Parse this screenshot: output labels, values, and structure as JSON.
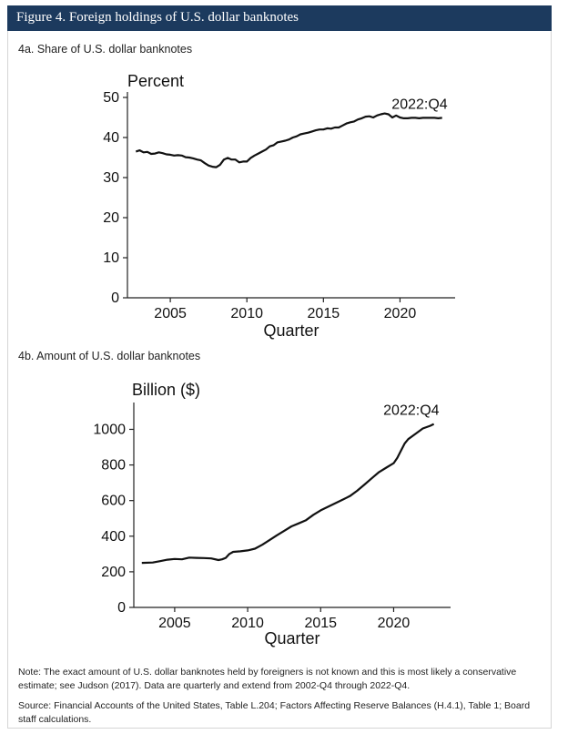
{
  "figure_title": "Figure 4. Foreign holdings of U.S. dollar banknotes",
  "panel_a_title": "4a. Share of U.S. dollar banknotes",
  "panel_b_title": "4b. Amount of U.S. dollar banknotes",
  "note": "Note: The exact amount of U.S. dollar banknotes held by foreigners is not known and this is most likely a conservative estimate; see Judson (2017). Data are quarterly and extend from 2002-Q4 through 2022-Q4.",
  "source": "Source: Financial Accounts of the United States, Table L.204; Factors Affecting Reserve Balances (H.4.1), Table 1; Board staff calculations.",
  "colors": {
    "header_bg": "#1c3a5e",
    "line": "#111111"
  },
  "chart_data": [
    {
      "type": "line",
      "title": "",
      "ylabel": "Percent",
      "xlabel": "Quarter",
      "xlim": [
        2002.2,
        2023.6
      ],
      "ylim": [
        0,
        50
      ],
      "xticks": [
        2005,
        2010,
        2015,
        2020
      ],
      "yticks": [
        0,
        10,
        20,
        30,
        40,
        50
      ],
      "annotation": {
        "text": "2022:Q4",
        "x": 2022.75,
        "y": 44.9
      },
      "grid": false,
      "series": [
        {
          "name": "",
          "x": [
            2002.75,
            2003.0,
            2003.25,
            2003.5,
            2003.75,
            2004.0,
            2004.25,
            2004.5,
            2004.75,
            2005.0,
            2005.25,
            2005.5,
            2005.75,
            2006.0,
            2006.25,
            2006.5,
            2006.75,
            2007.0,
            2007.25,
            2007.5,
            2007.75,
            2008.0,
            2008.25,
            2008.5,
            2008.75,
            2009.0,
            2009.25,
            2009.5,
            2009.75,
            2010.0,
            2010.25,
            2010.5,
            2010.75,
            2011.0,
            2011.25,
            2011.5,
            2011.75,
            2012.0,
            2012.25,
            2012.5,
            2012.75,
            2013.0,
            2013.25,
            2013.5,
            2013.75,
            2014.0,
            2014.25,
            2014.5,
            2014.75,
            2015.0,
            2015.25,
            2015.5,
            2015.75,
            2016.0,
            2016.25,
            2016.5,
            2016.75,
            2017.0,
            2017.25,
            2017.5,
            2017.75,
            2018.0,
            2018.25,
            2018.5,
            2018.75,
            2019.0,
            2019.25,
            2019.5,
            2019.75,
            2020.0,
            2020.25,
            2020.5,
            2020.75,
            2021.0,
            2021.25,
            2021.5,
            2021.75,
            2022.0,
            2022.25,
            2022.5,
            2022.75
          ],
          "y": [
            36.5,
            36.8,
            36.3,
            36.4,
            35.9,
            36.0,
            36.3,
            36.1,
            35.8,
            35.7,
            35.5,
            35.6,
            35.5,
            35.1,
            35.0,
            34.8,
            34.5,
            34.3,
            33.6,
            33.0,
            32.7,
            32.6,
            33.2,
            34.5,
            34.9,
            34.5,
            34.5,
            33.8,
            34.0,
            34.0,
            34.9,
            35.5,
            36.0,
            36.5,
            37.0,
            37.8,
            38.1,
            38.8,
            39.0,
            39.2,
            39.5,
            40.0,
            40.3,
            40.8,
            41.0,
            41.2,
            41.5,
            41.8,
            42.0,
            42.0,
            42.3,
            42.2,
            42.5,
            42.5,
            43.0,
            43.5,
            43.8,
            44.0,
            44.5,
            44.8,
            45.2,
            45.3,
            45.0,
            45.5,
            45.8,
            46.0,
            45.8,
            45.0,
            45.5,
            45.0,
            44.8,
            44.8,
            44.9,
            44.9,
            44.8,
            44.9,
            44.9,
            44.9,
            44.9,
            44.8,
            44.9
          ]
        }
      ]
    },
    {
      "type": "line",
      "title": "",
      "ylabel": "Billion ($)",
      "xlabel": "Quarter",
      "xlim": [
        2002.2,
        2023.9
      ],
      "ylim": [
        0,
        1120
      ],
      "xticks": [
        2005,
        2010,
        2015,
        2020
      ],
      "yticks": [
        0,
        200,
        400,
        600,
        800,
        1000
      ],
      "annotation": {
        "text": "2022:Q4",
        "x": 2022.75,
        "y": 1030
      },
      "grid": false,
      "series": [
        {
          "name": "",
          "x": [
            2002.75,
            2003.5,
            2004.0,
            2004.5,
            2005.0,
            2005.5,
            2006.0,
            2006.5,
            2007.0,
            2007.5,
            2008.0,
            2008.25,
            2008.5,
            2008.75,
            2009.0,
            2009.5,
            2010.0,
            2010.5,
            2011.0,
            2011.5,
            2012.0,
            2012.5,
            2013.0,
            2013.5,
            2014.0,
            2014.5,
            2015.0,
            2015.5,
            2016.0,
            2016.5,
            2017.0,
            2017.5,
            2018.0,
            2018.5,
            2019.0,
            2019.5,
            2020.0,
            2020.25,
            2020.5,
            2020.75,
            2021.0,
            2021.5,
            2022.0,
            2022.5,
            2022.75
          ],
          "y": [
            250,
            252,
            260,
            268,
            272,
            270,
            280,
            278,
            277,
            275,
            266,
            270,
            278,
            300,
            312,
            315,
            320,
            330,
            352,
            378,
            405,
            430,
            455,
            472,
            490,
            520,
            545,
            565,
            585,
            605,
            625,
            655,
            690,
            725,
            760,
            785,
            810,
            840,
            880,
            920,
            945,
            975,
            1005,
            1020,
            1030
          ]
        }
      ]
    }
  ]
}
